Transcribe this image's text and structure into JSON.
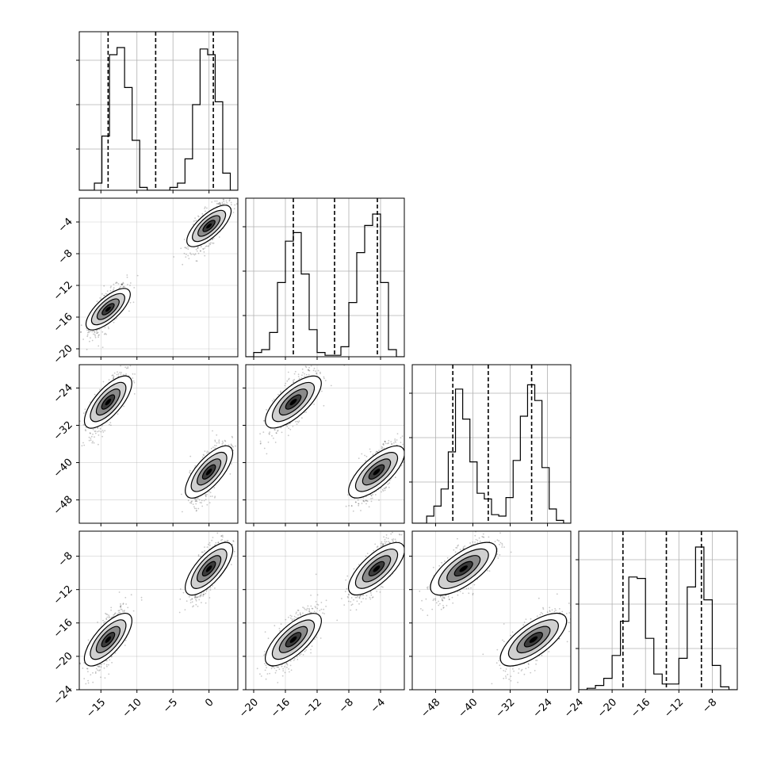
{
  "chart_data": {
    "type": "corner",
    "dimensions": 4,
    "grid": true,
    "colors": {
      "line": "#000000",
      "grid": "#b0b0b0",
      "points": "#000000",
      "fill_dark": "#000000",
      "fill_light": "#ffffff"
    },
    "ranges": [
      [
        -18,
        4
      ],
      [
        -21,
        -1
      ],
      [
        -53,
        -19
      ],
      [
        -24,
        -5
      ]
    ],
    "ticks": [
      [
        -15,
        -10,
        -5,
        0
      ],
      [
        -20,
        -16,
        -12,
        -8,
        -4
      ],
      [
        -48,
        -40,
        -32,
        -24
      ],
      [
        -24,
        -20,
        -16,
        -12,
        -8
      ]
    ],
    "tick_labels": [
      [
        "−15",
        "−10",
        "−5",
        "0"
      ],
      [
        "−20",
        "−16",
        "−12",
        "−8",
        "−4"
      ],
      [
        "−48",
        "−40",
        "−32",
        "−24"
      ],
      [
        "−24",
        "−20",
        "−16",
        "−12",
        "−8"
      ]
    ],
    "quantiles": [
      [
        -14.0,
        -7.4,
        0.6
      ],
      [
        -15.0,
        -9.8,
        -4.4
      ],
      [
        -44.3,
        -36.7,
        -27.4
      ],
      [
        -18.7,
        -13.5,
        -9.3
      ]
    ],
    "histograms": [
      [
        0,
        0,
        0.05,
        0.38,
        0.95,
        1.0,
        0.72,
        0.35,
        0.02,
        0,
        0,
        0,
        0.02,
        0.05,
        0.22,
        0.6,
        0.99,
        0.95,
        0.62,
        0.12,
        0
      ],
      [
        0,
        0.03,
        0.05,
        0.17,
        0.52,
        0.81,
        0.87,
        0.58,
        0.19,
        0.03,
        0.01,
        0.01,
        0.07,
        0.38,
        0.73,
        0.92,
        1.0,
        0.52,
        0.05,
        0
      ],
      [
        0,
        0,
        0.05,
        0.12,
        0.24,
        0.5,
        0.94,
        0.73,
        0.43,
        0.21,
        0.17,
        0.06,
        0.05,
        0.18,
        0.44,
        0.75,
        0.97,
        0.86,
        0.39,
        0.1,
        0.02,
        0
      ],
      [
        0,
        0.01,
        0.03,
        0.08,
        0.24,
        0.48,
        0.79,
        0.78,
        0.36,
        0.11,
        0.04,
        0.04,
        0.22,
        0.72,
        1.0,
        0.63,
        0.17,
        0.02,
        0
      ]
    ],
    "modes": [
      [
        -14.0,
        -15.0,
        -27.0,
        -18.0
      ],
      [
        0.0,
        -4.5,
        -42.0,
        -9.5
      ]
    ],
    "spreads": [
      1.3,
      1.5,
      3.2,
      1.8
    ],
    "correlation_within_mode": 0.72
  }
}
